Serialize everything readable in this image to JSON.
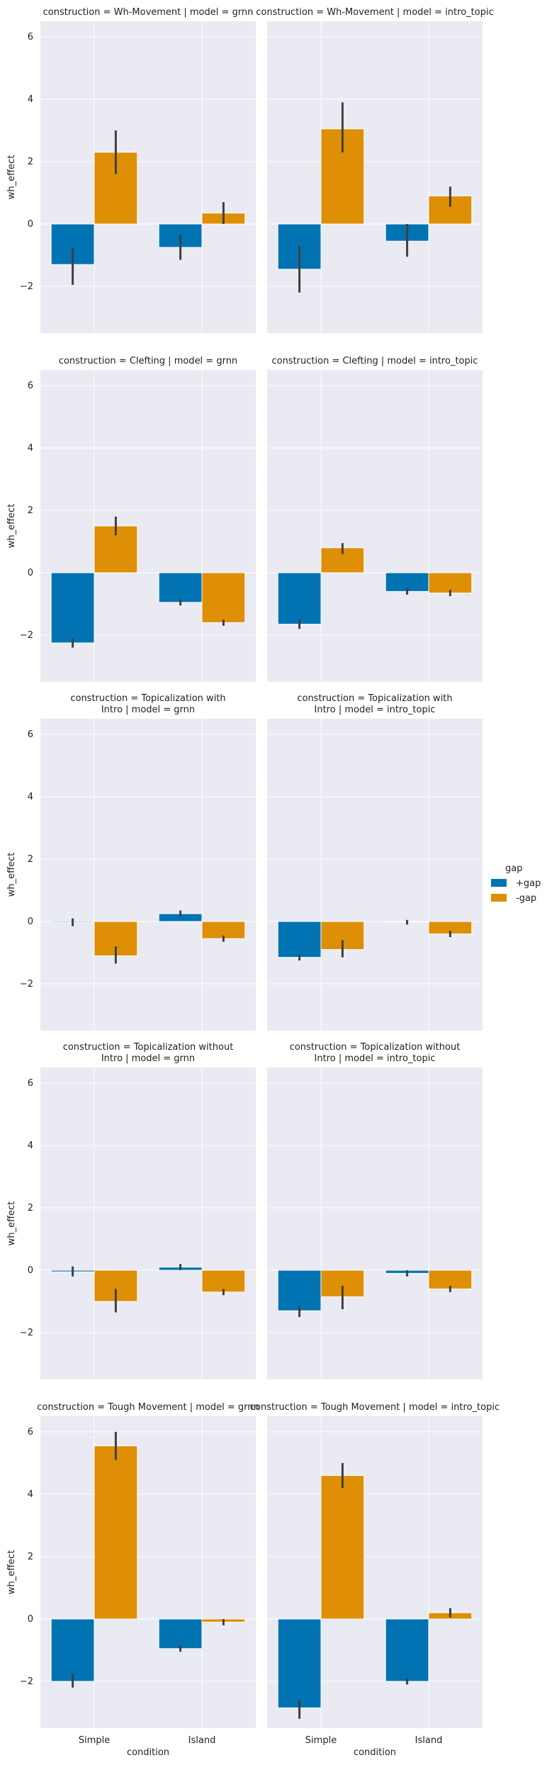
{
  "chart_data": {
    "type": "bar",
    "layout": "facet-grid",
    "x_label": "condition",
    "y_label": "wh_effect",
    "categories": [
      "Simple",
      "Island"
    ],
    "ylim": [
      -3.5,
      6.5
    ],
    "yticks": [
      -2,
      0,
      2,
      4,
      6
    ],
    "grid": true,
    "legend": {
      "title": "gap",
      "placement": "right",
      "entries": [
        {
          "label": "+gap",
          "color": "#0173b2"
        },
        {
          "label": "-gap",
          "color": "#de8f05"
        }
      ]
    },
    "series_colors": {
      "+gap": "#0173b2",
      "-gap": "#de8f05"
    },
    "rows": [
      {
        "construction": "Wh-Movement",
        "panels": [
          {
            "title_lines": [
              "construction = Wh-Movement | model = grnn"
            ],
            "bars": {
              "+gap": [
                -1.3,
                -0.75
              ],
              "-gap": [
                2.3,
                0.35
              ]
            },
            "err": {
              "+gap": [
                [
                  -1.95,
                  -0.75
                ],
                [
                  -1.15,
                  -0.35
                ]
              ],
              "-gap": [
                [
                  1.6,
                  3.0
                ],
                [
                  0.0,
                  0.7
                ]
              ]
            }
          },
          {
            "title_lines": [
              "construction = Wh-Movement | model = intro_topic"
            ],
            "bars": {
              "+gap": [
                -1.45,
                -0.55
              ],
              "-gap": [
                3.05,
                0.9
              ]
            },
            "err": {
              "+gap": [
                [
                  -2.2,
                  -0.7
                ],
                [
                  -1.05,
                  0.0
                ]
              ],
              "-gap": [
                [
                  2.3,
                  3.9
                ],
                [
                  0.55,
                  1.2
                ]
              ]
            }
          }
        ]
      },
      {
        "construction": "Clefting",
        "panels": [
          {
            "title_lines": [
              "construction = Clefting | model = grnn"
            ],
            "bars": {
              "+gap": [
                -2.25,
                -0.95
              ],
              "-gap": [
                1.5,
                -1.6
              ]
            },
            "err": {
              "+gap": [
                [
                  -2.4,
                  -2.1
                ],
                [
                  -1.05,
                  -0.85
                ]
              ],
              "-gap": [
                [
                  1.2,
                  1.8
                ],
                [
                  -1.7,
                  -1.5
                ]
              ]
            }
          },
          {
            "title_lines": [
              "construction = Clefting | model = intro_topic"
            ],
            "bars": {
              "+gap": [
                -1.65,
                -0.6
              ],
              "-gap": [
                0.8,
                -0.65
              ]
            },
            "err": {
              "+gap": [
                [
                  -1.8,
                  -1.5
                ],
                [
                  -0.7,
                  -0.5
                ]
              ],
              "-gap": [
                [
                  0.6,
                  0.95
                ],
                [
                  -0.75,
                  -0.55
                ]
              ]
            }
          }
        ]
      },
      {
        "construction": "Topicalization with Intro",
        "panels": [
          {
            "title_lines": [
              "construction = Topicalization with",
              "Intro | model = grnn"
            ],
            "bars": {
              "+gap": [
                -0.03,
                0.25
              ],
              "-gap": [
                -1.1,
                -0.55
              ]
            },
            "err": {
              "+gap": [
                [
                  -0.15,
                  0.1
                ],
                [
                  0.15,
                  0.35
                ]
              ],
              "-gap": [
                [
                  -1.35,
                  -0.8
                ],
                [
                  -0.65,
                  -0.45
                ]
              ]
            }
          },
          {
            "title_lines": [
              "construction = Topicalization with",
              "Intro | model = intro_topic"
            ],
            "bars": {
              "+gap": [
                -1.15,
                -0.02
              ],
              "-gap": [
                -0.9,
                -0.4
              ]
            },
            "err": {
              "+gap": [
                [
                  -1.25,
                  -1.05
                ],
                [
                  -0.1,
                  0.05
                ]
              ],
              "-gap": [
                [
                  -1.15,
                  -0.6
                ],
                [
                  -0.5,
                  -0.3
                ]
              ]
            }
          }
        ]
      },
      {
        "construction": "Topicalization without Intro",
        "panels": [
          {
            "title_lines": [
              "construction = Topicalization without",
              "Intro | model = grnn"
            ],
            "bars": {
              "+gap": [
                -0.05,
                0.1
              ],
              "-gap": [
                -1.0,
                -0.7
              ]
            },
            "err": {
              "+gap": [
                [
                  -0.2,
                  0.12
                ],
                [
                  0.0,
                  0.2
                ]
              ],
              "-gap": [
                [
                  -1.35,
                  -0.6
                ],
                [
                  -0.8,
                  -0.6
                ]
              ]
            }
          },
          {
            "title_lines": [
              "construction = Topicalization without",
              "Intro | model = intro_topic"
            ],
            "bars": {
              "+gap": [
                -1.3,
                -0.1
              ],
              "-gap": [
                -0.85,
                -0.6
              ]
            },
            "err": {
              "+gap": [
                [
                  -1.5,
                  -1.15
                ],
                [
                  -0.2,
                  0.0
                ]
              ],
              "-gap": [
                [
                  -1.25,
                  -0.5
                ],
                [
                  -0.7,
                  -0.5
                ]
              ]
            }
          }
        ]
      },
      {
        "construction": "Tough Movement",
        "panels": [
          {
            "title_lines": [
              "construction = Tough Movement | model = grnn"
            ],
            "bars": {
              "+gap": [
                -2.0,
                -0.95
              ],
              "-gap": [
                5.55,
                -0.1
              ]
            },
            "err": {
              "+gap": [
                [
                  -2.2,
                  -1.75
                ],
                [
                  -1.05,
                  -0.85
                ]
              ],
              "-gap": [
                [
                  5.1,
                  6.0
                ],
                [
                  -0.2,
                  0.0
                ]
              ]
            }
          },
          {
            "title_lines": [
              "construction = Tough Movement | model = intro_topic"
            ],
            "bars": {
              "+gap": [
                -2.85,
                -2.0
              ],
              "-gap": [
                4.6,
                0.2
              ]
            },
            "err": {
              "+gap": [
                [
                  -3.2,
                  -2.6
                ],
                [
                  -2.1,
                  -1.9
                ]
              ],
              "-gap": [
                [
                  4.2,
                  5.0
                ],
                [
                  0.05,
                  0.35
                ]
              ]
            }
          }
        ]
      }
    ]
  }
}
